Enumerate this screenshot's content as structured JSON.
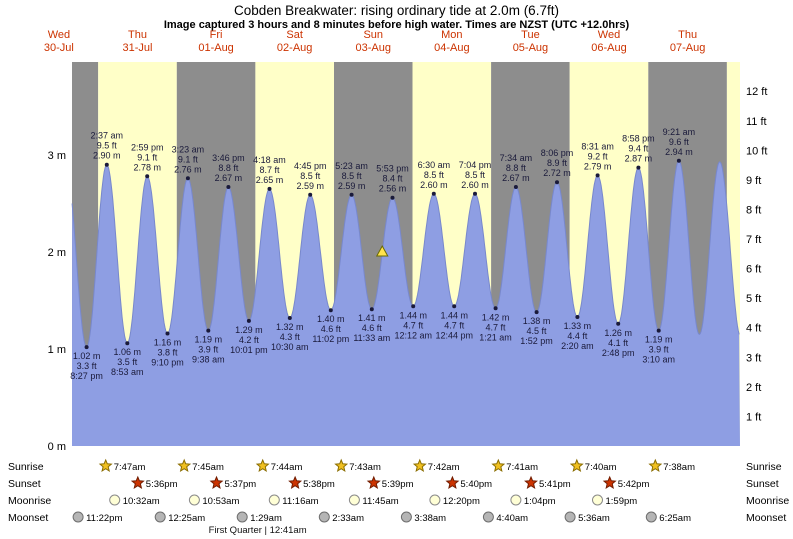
{
  "header": {
    "title": "Cobden Breakwater: rising ordinary tide at 2.0m (6.7ft)",
    "subtitle": "Image captured 3 hours and 8 minutes before high water. Times are NZST (UTC +12.0hrs)"
  },
  "colors": {
    "day_label": "#cc3300",
    "band_yellow": "#ffffc8",
    "band_gray": "#8d8d8d",
    "tide_fill": "#8e9ee3",
    "tide_stroke": "#7888cc",
    "dot": "#1a1a3a",
    "annotation_text": "#1a1a3a",
    "axis_text": "#000000",
    "marker_fill": "#ffe34d",
    "marker_stroke": "#6b6b00",
    "sunrise_star": "#f0c020",
    "sunrise_star_stroke": "#8a6d00",
    "sunset_star": "#cc3300",
    "sunset_star_stroke": "#701c00",
    "moonrise_fill": "#ffffd6",
    "moonrise_stroke": "#8a8a8a",
    "moonset_fill": "#b5b5b5",
    "moonset_stroke": "#6e6e6e",
    "astro_text": "#000000"
  },
  "chart_data": {
    "type": "area",
    "title": "Cobden Breakwater: rising ordinary tide at 2.0m (6.7ft)",
    "subtitle": "Image captured 3 hours and 8 minutes before high water. Times are NZST (UTC +12.0hrs)",
    "ylim_m": [
      0,
      3.96
    ],
    "units_left": "m",
    "units_right": "ft",
    "days": [
      {
        "weekday": "Wed",
        "date": "30-Jul",
        "band": "gray",
        "noon_t": 12
      },
      {
        "weekday": "Thu",
        "date": "31-Jul",
        "band": "yellow",
        "noon_t": 36
      },
      {
        "weekday": "Fri",
        "date": "01-Aug",
        "band": "gray",
        "noon_t": 60
      },
      {
        "weekday": "Sat",
        "date": "02-Aug",
        "band": "yellow",
        "noon_t": 84
      },
      {
        "weekday": "Sun",
        "date": "03-Aug",
        "band": "gray",
        "noon_t": 108
      },
      {
        "weekday": "Mon",
        "date": "04-Aug",
        "band": "yellow",
        "noon_t": 132
      },
      {
        "weekday": "Tue",
        "date": "05-Aug",
        "band": "gray",
        "noon_t": 156
      },
      {
        "weekday": "Wed",
        "date": "06-Aug",
        "band": "yellow",
        "noon_t": 180
      },
      {
        "weekday": "Thu",
        "date": "07-Aug",
        "band": "gray",
        "noon_t": 204
      }
    ],
    "axes": {
      "left_ticks": [
        {
          "m": 0,
          "label": "0 m"
        },
        {
          "m": 1,
          "label": "1 m"
        },
        {
          "m": 2,
          "label": "2 m"
        },
        {
          "m": 3,
          "label": "3 m"
        }
      ],
      "right_ticks": [
        {
          "ft": 1,
          "label": "1 ft"
        },
        {
          "ft": 2,
          "label": "2 ft"
        },
        {
          "ft": 3,
          "label": "3 ft"
        },
        {
          "ft": 4,
          "label": "4 ft"
        },
        {
          "ft": 5,
          "label": "5 ft"
        },
        {
          "ft": 6,
          "label": "6 ft"
        },
        {
          "ft": 7,
          "label": "7 ft"
        },
        {
          "ft": 8,
          "label": "8 ft"
        },
        {
          "ft": 9,
          "label": "9 ft"
        },
        {
          "ft": 10,
          "label": "10 ft"
        },
        {
          "ft": 11,
          "label": "11 ft"
        },
        {
          "ft": 12,
          "label": "12 ft"
        }
      ]
    },
    "extremes": [
      {
        "kind": "high",
        "t": 14.2,
        "m": 2.86,
        "anchor": true
      },
      {
        "kind": "low",
        "t": 20.45,
        "m": 1.02,
        "m_label": "1.02 m",
        "ft_label": "3.3 ft",
        "time": "8:27 pm"
      },
      {
        "kind": "high",
        "t": 26.62,
        "m": 2.9,
        "m_label": "2.90 m",
        "ft_label": "9.5 ft",
        "time": "2:37 am"
      },
      {
        "kind": "low",
        "t": 32.88,
        "m": 1.06,
        "m_label": "1.06 m",
        "ft_label": "3.5 ft",
        "time": "8:53 am"
      },
      {
        "kind": "high",
        "t": 38.98,
        "m": 2.78,
        "m_label": "2.78 m",
        "ft_label": "9.1 ft",
        "time": "2:59 pm"
      },
      {
        "kind": "low",
        "t": 45.17,
        "m": 1.16,
        "m_label": "1.16 m",
        "ft_label": "3.8 ft",
        "time": "9:10 pm"
      },
      {
        "kind": "high",
        "t": 51.38,
        "m": 2.76,
        "m_label": "2.76 m",
        "ft_label": "9.1 ft",
        "time": "3:23 am"
      },
      {
        "kind": "low",
        "t": 57.63,
        "m": 1.19,
        "m_label": "1.19 m",
        "ft_label": "3.9 ft",
        "time": "9:38 am"
      },
      {
        "kind": "high",
        "t": 63.77,
        "m": 2.67,
        "m_label": "2.67 m",
        "ft_label": "8.8 ft",
        "time": "3:46 pm"
      },
      {
        "kind": "low",
        "t": 70.02,
        "m": 1.29,
        "m_label": "1.29 m",
        "ft_label": "4.2 ft",
        "time": "10:01 pm"
      },
      {
        "kind": "high",
        "t": 76.3,
        "m": 2.65,
        "m_label": "2.65 m",
        "ft_label": "8.7 ft",
        "time": "4:18 am"
      },
      {
        "kind": "low",
        "t": 82.5,
        "m": 1.32,
        "m_label": "1.32 m",
        "ft_label": "4.3 ft",
        "time": "10:30 am"
      },
      {
        "kind": "high",
        "t": 88.75,
        "m": 2.59,
        "m_label": "2.59 m",
        "ft_label": "8.5 ft",
        "time": "4:45 pm"
      },
      {
        "kind": "low",
        "t": 95.03,
        "m": 1.4,
        "m_label": "1.40 m",
        "ft_label": "4.6 ft",
        "time": "11:02 pm"
      },
      {
        "kind": "high",
        "t": 101.38,
        "m": 2.59,
        "m_label": "2.59 m",
        "ft_label": "8.5 ft",
        "time": "5:23 am"
      },
      {
        "kind": "low",
        "t": 107.55,
        "m": 1.41,
        "m_label": "1.41 m",
        "ft_label": "4.6 ft",
        "time": "11:33 am"
      },
      {
        "kind": "high",
        "t": 113.88,
        "m": 2.56,
        "m_label": "2.56 m",
        "ft_label": "8.4 ft",
        "time": "5:53 pm"
      },
      {
        "kind": "low",
        "t": 120.2,
        "m": 1.44,
        "m_label": "1.44 m",
        "ft_label": "4.7 ft",
        "time": "12:12 am"
      },
      {
        "kind": "high",
        "t": 126.5,
        "m": 2.6,
        "m_label": "2.60 m",
        "ft_label": "8.5 ft",
        "time": "6:30 am"
      },
      {
        "kind": "low",
        "t": 132.73,
        "m": 1.44,
        "m_label": "1.44 m",
        "ft_label": "4.7 ft",
        "time": "12:44 pm"
      },
      {
        "kind": "high",
        "t": 139.07,
        "m": 2.6,
        "m_label": "2.60 m",
        "ft_label": "8.5 ft",
        "time": "7:04 pm"
      },
      {
        "kind": "low",
        "t": 145.35,
        "m": 1.42,
        "m_label": "1.42 m",
        "ft_label": "4.7 ft",
        "time": "1:21 am"
      },
      {
        "kind": "high",
        "t": 151.57,
        "m": 2.67,
        "m_label": "2.67 m",
        "ft_label": "8.8 ft",
        "time": "7:34 am"
      },
      {
        "kind": "low",
        "t": 157.87,
        "m": 1.38,
        "m_label": "1.38 m",
        "ft_label": "4.5 ft",
        "time": "1:52 pm"
      },
      {
        "kind": "high",
        "t": 164.1,
        "m": 2.72,
        "m_label": "2.72 m",
        "ft_label": "8.9 ft",
        "time": "8:06 pm"
      },
      {
        "kind": "low",
        "t": 170.33,
        "m": 1.33,
        "m_label": "1.33 m",
        "ft_label": "4.4 ft",
        "time": "2:20 am"
      },
      {
        "kind": "high",
        "t": 176.52,
        "m": 2.79,
        "m_label": "2.79 m",
        "ft_label": "9.2 ft",
        "time": "8:31 am"
      },
      {
        "kind": "low",
        "t": 182.8,
        "m": 1.26,
        "m_label": "1.26 m",
        "ft_label": "4.1 ft",
        "time": "2:48 pm"
      },
      {
        "kind": "high",
        "t": 188.97,
        "m": 2.87,
        "m_label": "2.87 m",
        "ft_label": "9.4 ft",
        "time": "8:58 pm"
      },
      {
        "kind": "low",
        "t": 195.17,
        "m": 1.19,
        "m_label": "1.19 m",
        "ft_label": "3.9 ft",
        "time": "3:10 am"
      },
      {
        "kind": "high",
        "t": 201.35,
        "m": 2.94,
        "m_label": "2.94 m",
        "ft_label": "9.6 ft",
        "time": "9:21 am"
      },
      {
        "kind": "low",
        "t": 207.6,
        "m": 1.15,
        "anchor": true
      },
      {
        "kind": "high",
        "t": 213.8,
        "m": 2.93,
        "anchor": true
      },
      {
        "kind": "low",
        "t": 220.3,
        "m": 1.12,
        "anchor": true
      }
    ],
    "current_marker": {
      "t": 110.75,
      "m": 2.0
    },
    "astro": {
      "rows": [
        {
          "id": "sunrise",
          "label": "Sunrise",
          "entries": [
            {
              "t": 31.78,
              "label": "7:47am"
            },
            {
              "t": 55.75,
              "label": "7:45am"
            },
            {
              "t": 79.73,
              "label": "7:44am"
            },
            {
              "t": 103.72,
              "label": "7:43am"
            },
            {
              "t": 127.7,
              "label": "7:42am"
            },
            {
              "t": 151.68,
              "label": "7:41am"
            },
            {
              "t": 175.67,
              "label": "7:40am"
            },
            {
              "t": 199.63,
              "label": "7:38am"
            }
          ]
        },
        {
          "id": "sunset",
          "label": "Sunset",
          "entries": [
            {
              "t": 41.6,
              "label": "5:36pm"
            },
            {
              "t": 65.62,
              "label": "5:37pm"
            },
            {
              "t": 89.63,
              "label": "5:38pm"
            },
            {
              "t": 113.65,
              "label": "5:39pm"
            },
            {
              "t": 137.67,
              "label": "5:40pm"
            },
            {
              "t": 161.68,
              "label": "5:41pm"
            },
            {
              "t": 185.7,
              "label": "5:42pm"
            }
          ]
        },
        {
          "id": "moonrise",
          "label": "Moonrise",
          "entries": [
            {
              "t": 34.53,
              "label": "10:32am"
            },
            {
              "t": 58.88,
              "label": "10:53am"
            },
            {
              "t": 83.27,
              "label": "11:16am"
            },
            {
              "t": 107.75,
              "label": "11:45am"
            },
            {
              "t": 132.33,
              "label": "12:20pm"
            },
            {
              "t": 157.07,
              "label": "1:04pm"
            },
            {
              "t": 181.98,
              "label": "1:59pm"
            }
          ]
        },
        {
          "id": "moonset",
          "label": "Moonset",
          "entries": [
            {
              "t": 23.37,
              "label": "11:22pm"
            },
            {
              "t": 48.42,
              "label": "12:25am"
            },
            {
              "t": 73.48,
              "label": "1:29am"
            },
            {
              "t": 98.55,
              "label": "2:33am"
            },
            {
              "t": 123.63,
              "label": "3:38am"
            },
            {
              "t": 148.67,
              "label": "4:40am"
            },
            {
              "t": 173.6,
              "label": "5:36am"
            },
            {
              "t": 198.42,
              "label": "6:25am"
            }
          ]
        }
      ],
      "footer": "First Quarter | 12:41am",
      "footer_t": 72.68
    }
  }
}
